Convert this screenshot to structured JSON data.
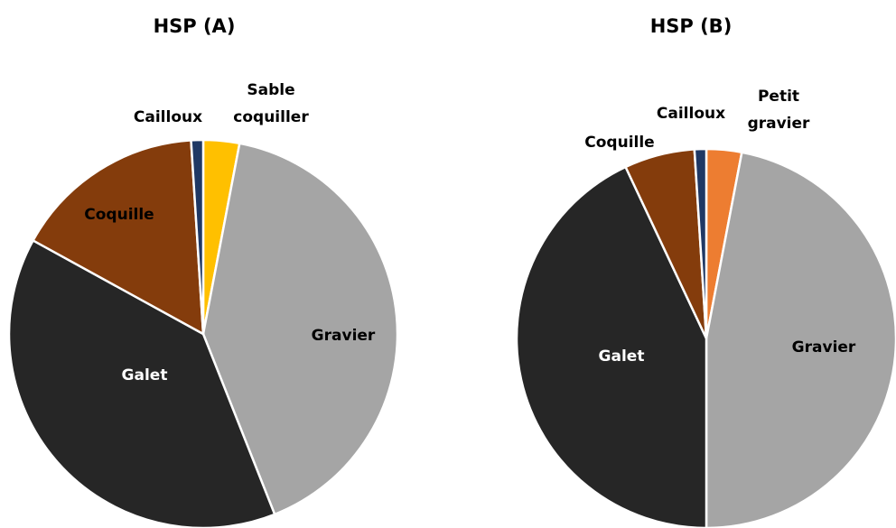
{
  "chart_data": [
    {
      "type": "pie",
      "title": "HSP (A)",
      "categories": [
        "Sable coquiller",
        "Gravier",
        "Galet",
        "Coquille",
        "Cailloux"
      ],
      "values": [
        3,
        41,
        39,
        16,
        1
      ],
      "colors": [
        "#ffc000",
        "#a5a5a5",
        "#262626",
        "#843c0c",
        "#1f3864"
      ]
    },
    {
      "type": "pie",
      "title": "HSP (B)",
      "categories": [
        "Petit gravier",
        "Gravier",
        "Galet",
        "Coquille",
        "Cailloux"
      ],
      "values": [
        3,
        47,
        43,
        6,
        1
      ],
      "colors": [
        "#ed7d31",
        "#a5a5a5",
        "#262626",
        "#843c0c",
        "#1f3864"
      ]
    }
  ]
}
